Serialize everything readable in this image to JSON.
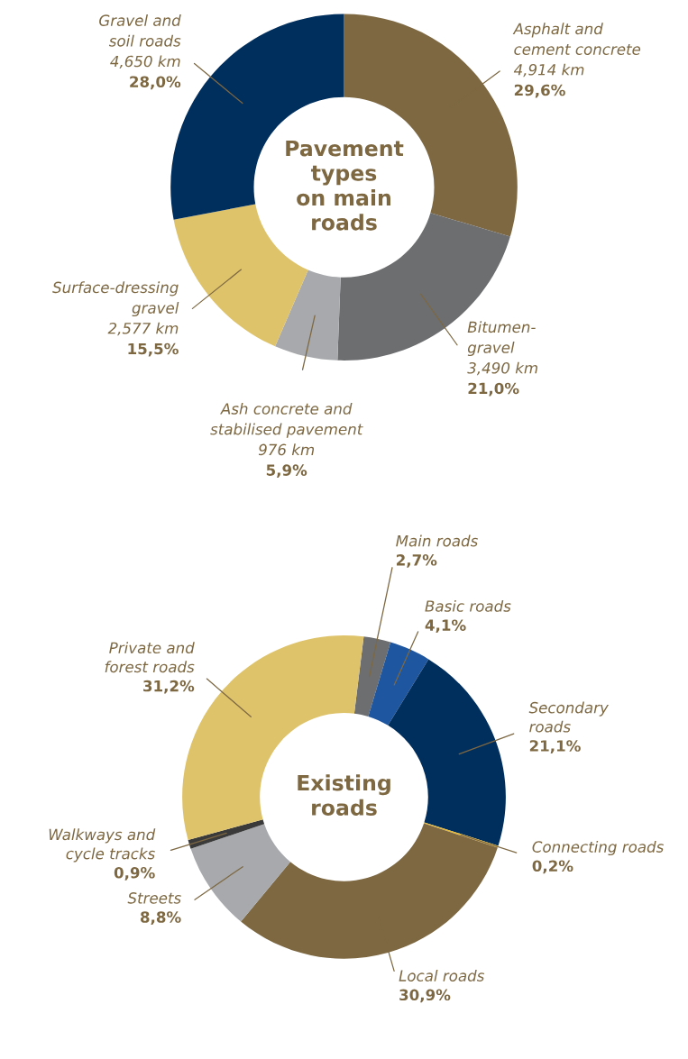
{
  "chart_data": [
    {
      "type": "donut",
      "title": "Pavement\ntypes\non main\nroads",
      "categories": [
        "Asphalt and\ncement concrete",
        "Bitumen-\ngravel",
        "Ash concrete and\nstabilised pavement",
        "Surface-dressing\ngravel",
        "Gravel and\nsoil roads"
      ],
      "values": [
        29.6,
        21.0,
        5.9,
        15.5,
        28.0
      ],
      "colors": [
        "#7d6842",
        "#6d6e70",
        "#a7a9ac",
        "#dfc36b",
        "#002e5d"
      ],
      "value_labels": [
        "4,914 km\n29,6%",
        "3,490 km\n21,0%",
        "976 km\n5,9%",
        "2,577 km\n15,5%",
        "4,650 km\n28,0%"
      ]
    },
    {
      "type": "donut",
      "title": "Existing\nroads",
      "categories": [
        "Main roads",
        "Basic roads",
        "Secondary\nroads",
        "Connecting roads",
        "Local roads",
        "Streets",
        "Walkways and\ncycle tracks",
        "Private and\nforest roads"
      ],
      "values": [
        2.7,
        4.1,
        21.1,
        0.2,
        30.9,
        8.8,
        0.9,
        31.2
      ],
      "colors": [
        "#6d6e70",
        "#1f56a0",
        "#002e5d",
        "#e8b92e",
        "#7d6842",
        "#a7a9ac",
        "#3a3a3a",
        "#dfc36b"
      ],
      "value_labels": [
        "2,7%",
        "4,1%",
        "21,1%",
        "0,2%",
        "30,9%",
        "8,8%",
        "0,9%",
        "31,2%"
      ]
    }
  ]
}
